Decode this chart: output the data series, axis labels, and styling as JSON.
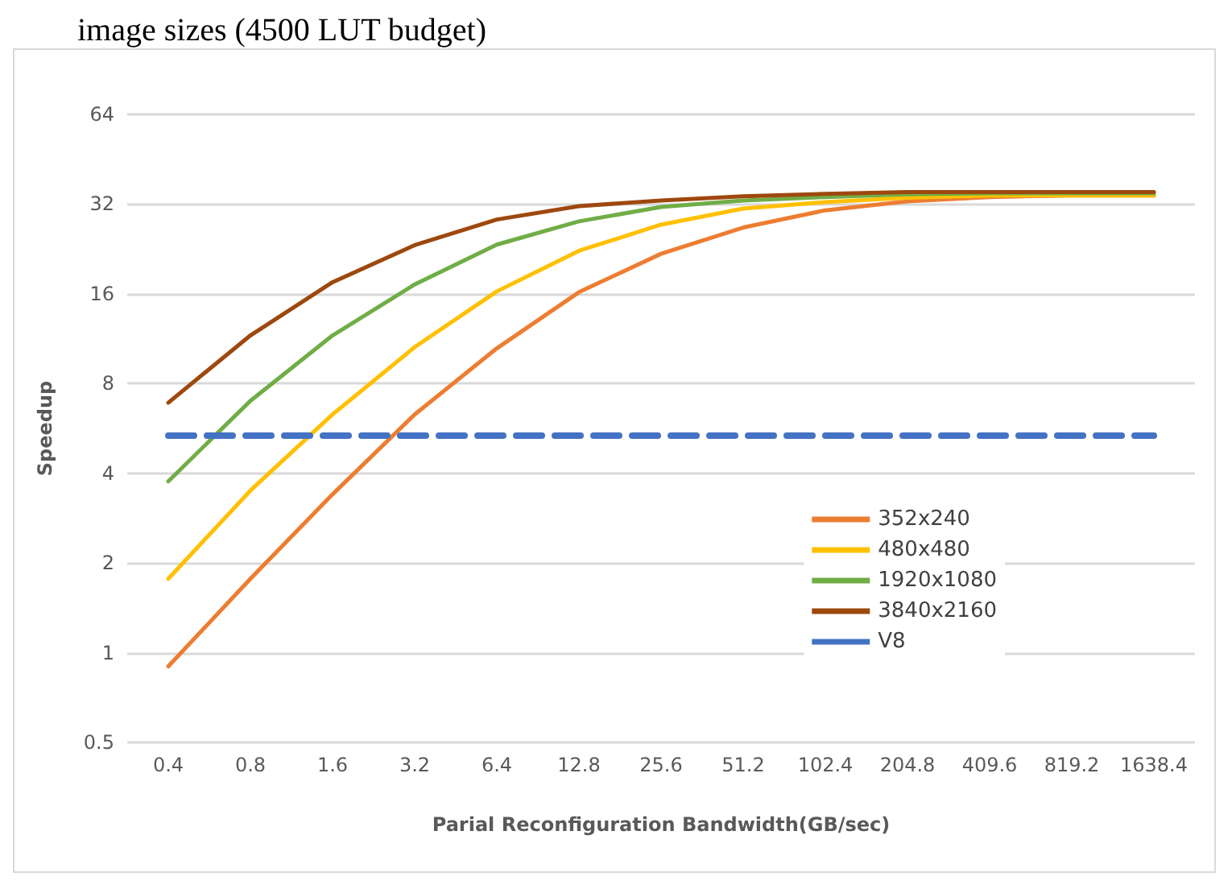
{
  "chart_data": {
    "type": "line",
    "title": "image sizes (4500 LUT budget)",
    "xlabel": "Parial Reconfiguration Bandwidth(GB/sec)",
    "ylabel": "Speedup",
    "categories": [
      "0.4",
      "0.8",
      "1.6",
      "3.2",
      "6.4",
      "12.8",
      "25.6",
      "51.2",
      "102.4",
      "204.8",
      "409.6",
      "819.2",
      "1638.4"
    ],
    "series": [
      {
        "name": "352x240",
        "color": "#ed7d31",
        "values": [
          0.9,
          1.77,
          3.4,
          6.3,
          10.5,
          16.2,
          21.8,
          26.7,
          30.5,
          32.7,
          33.8,
          34.2,
          34.2
        ]
      },
      {
        "name": "480x480",
        "color": "#ffc000",
        "values": [
          1.77,
          3.5,
          6.3,
          10.6,
          16.3,
          22.3,
          27.3,
          30.9,
          32.5,
          33.6,
          34.2,
          34.2,
          34.2
        ]
      },
      {
        "name": "1920x1080",
        "color": "#70ad47",
        "values": [
          3.76,
          7.0,
          11.6,
          17.2,
          23.4,
          28.0,
          31.3,
          32.9,
          33.8,
          34.5,
          34.8,
          34.8,
          34.8
        ]
      },
      {
        "name": "3840x2160",
        "color": "#9e480e",
        "values": [
          6.9,
          11.6,
          17.5,
          23.3,
          28.4,
          31.5,
          32.9,
          34.0,
          34.6,
          35.1,
          35.1,
          35.1,
          35.1
        ]
      },
      {
        "name": "V8",
        "color": "#4472c4",
        "line_style": "dashed",
        "values": [
          5.35,
          5.35,
          5.35,
          5.35,
          5.35,
          5.35,
          5.35,
          5.35,
          5.35,
          5.35,
          5.35,
          5.35,
          5.35
        ]
      }
    ],
    "log": "y",
    "ylim": [
      0.5,
      64
    ],
    "yticks": [
      0.5,
      1,
      2,
      4,
      8,
      16,
      32,
      64
    ],
    "grid": "y",
    "legend": "bottom right",
    "marker": "none",
    "line_style": "solid"
  }
}
